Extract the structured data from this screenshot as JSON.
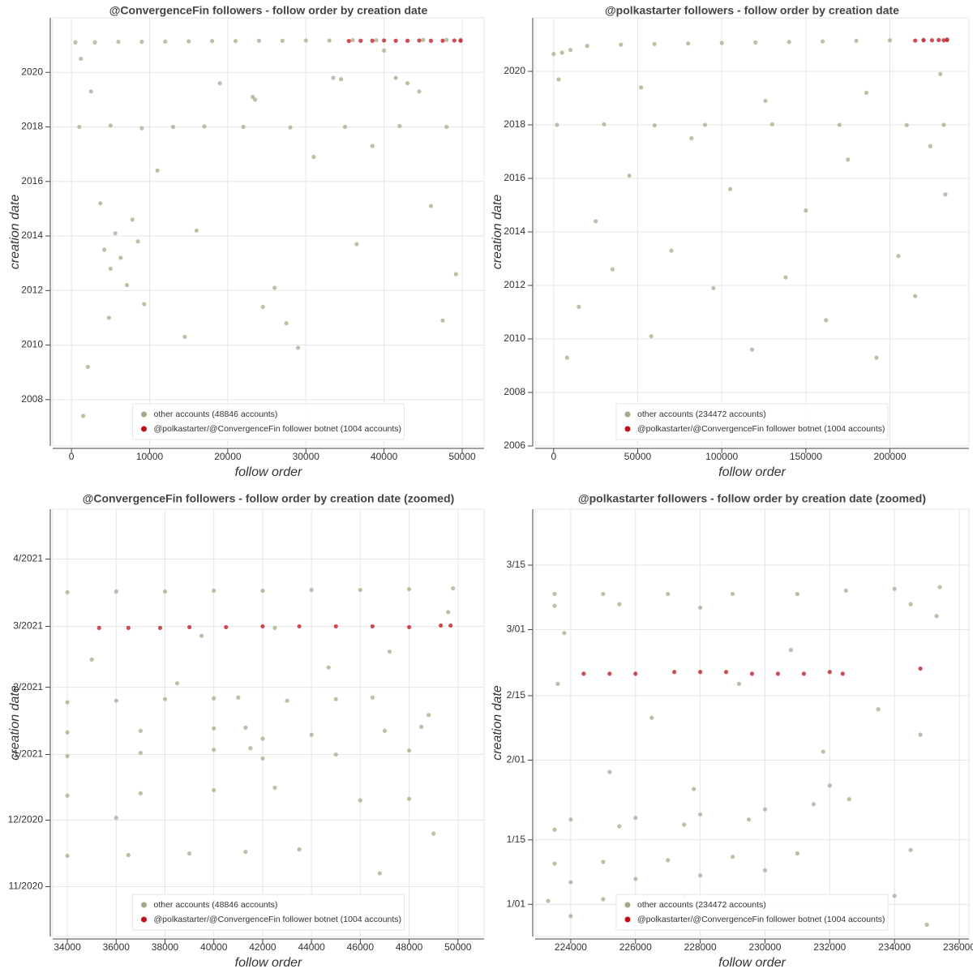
{
  "chart_data": [
    {
      "type": "scatter",
      "title": "@ConvergenceFin followers - follow order by creation date",
      "x_label": "follow order",
      "y_label": "creation date",
      "xlim": [
        -2400,
        52800
      ],
      "ylim": [
        2006.3,
        2022.0
      ],
      "xticks": [
        0,
        10000,
        20000,
        30000,
        40000,
        50000
      ],
      "yticks": [
        2008,
        2010,
        2012,
        2014,
        2016,
        2018,
        2020
      ],
      "grid": true,
      "legend": "bottom",
      "series": [
        {
          "name": "other accounts (48846 accounts)",
          "color": "#a9a888",
          "x": [
            500,
            3000,
            6000,
            9000,
            12000,
            15000,
            18000,
            21000,
            24000,
            27000,
            30000,
            33000,
            36000,
            39000,
            45000,
            48000,
            49800,
            1000,
            5000,
            9000,
            13000,
            17000,
            22000,
            28000,
            35000,
            42000,
            48000,
            1200,
            2500,
            4200,
            5000,
            5600,
            6300,
            7100,
            7800,
            8500,
            9300,
            4800,
            3700,
            2100,
            11000,
            14500,
            19000,
            23200,
            23500,
            24500,
            26000,
            27500,
            31000,
            33500,
            34500,
            36500,
            38500,
            41500,
            43000,
            44500,
            46000,
            47500,
            49200,
            1500,
            16000,
            29000,
            40000
          ],
          "y": [
            2021.1,
            2021.1,
            2021.12,
            2021.12,
            2021.13,
            2021.14,
            2021.15,
            2021.15,
            2021.16,
            2021.16,
            2021.17,
            2021.17,
            2021.18,
            2021.18,
            2021.19,
            2021.19,
            2021.2,
            2018,
            2018.05,
            2017.95,
            2018,
            2018.02,
            2018,
            2017.98,
            2018,
            2018.03,
            2018,
            2020.5,
            2019.3,
            2013.5,
            2012.8,
            2014.1,
            2013.2,
            2012.2,
            2014.6,
            2013.8,
            2011.5,
            2011.0,
            2015.2,
            2009.2,
            2016.4,
            2010.3,
            2019.6,
            2019.1,
            2019.0,
            2011.4,
            2012.1,
            2010.8,
            2016.9,
            2019.8,
            2019.75,
            2013.7,
            2017.3,
            2019.8,
            2019.6,
            2019.3,
            2015.1,
            2010.9,
            2012.6,
            2007.4,
            2014.2,
            2009.9,
            2020.8
          ]
        },
        {
          "name": "@polkastarter/@ConvergenceFin follower botnet (1004 accounts)",
          "color": "#c0101a",
          "x": [
            35500,
            37000,
            38500,
            40000,
            41500,
            43000,
            44500,
            46000,
            47500,
            49000,
            49800
          ],
          "y": [
            2021.15,
            2021.16,
            2021.16,
            2021.17,
            2021.16,
            2021.16,
            2021.17,
            2021.16,
            2021.16,
            2021.17,
            2021.16
          ]
        }
      ]
    },
    {
      "type": "scatter",
      "title": "@polkastarter followers - follow order by creation date",
      "x_label": "follow order",
      "y_label": "creation date",
      "xlim": [
        -11000,
        247000
      ],
      "ylim": [
        2006,
        2022
      ],
      "xticks": [
        0,
        50000,
        100000,
        150000,
        200000
      ],
      "yticks": [
        2006,
        2008,
        2010,
        2012,
        2014,
        2016,
        2018,
        2020
      ],
      "grid": true,
      "legend": "bottom",
      "series": [
        {
          "name": "other accounts (234472 accounts)",
          "color": "#a9a888",
          "x": [
            0,
            5000,
            10000,
            20000,
            40000,
            60000,
            80000,
            100000,
            120000,
            140000,
            160000,
            180000,
            200000,
            220000,
            234000,
            2000,
            30000,
            60000,
            90000,
            130000,
            170000,
            210000,
            232000,
            3000,
            8000,
            15000,
            25000,
            35000,
            45000,
            52000,
            58000,
            70000,
            82000,
            95000,
            105000,
            118000,
            126000,
            138000,
            150000,
            162000,
            175000,
            186000,
            192000,
            205000,
            215000,
            224000,
            230000,
            233000
          ],
          "y": [
            2020.65,
            2020.7,
            2020.8,
            2020.95,
            2021.0,
            2021.02,
            2021.04,
            2021.06,
            2021.08,
            2021.1,
            2021.12,
            2021.14,
            2021.16,
            2021.18,
            2021.2,
            2018,
            2018.02,
            2017.98,
            2018,
            2018.02,
            2018,
            2017.99,
            2018,
            2019.7,
            2009.3,
            2011.2,
            2014.4,
            2012.6,
            2016.1,
            2019.4,
            2010.1,
            2013.3,
            2017.5,
            2011.9,
            2015.6,
            2009.6,
            2018.9,
            2012.3,
            2014.8,
            2010.7,
            2016.7,
            2019.2,
            2009.3,
            2013.1,
            2011.6,
            2017.2,
            2019.9,
            2015.4
          ]
        },
        {
          "name": "@polkastarter/@ConvergenceFin follower botnet (1004 accounts)",
          "color": "#c0101a",
          "x": [
            215000,
            220000,
            225000,
            229000,
            232000,
            234000
          ],
          "y": [
            2021.15,
            2021.16,
            2021.16,
            2021.17,
            2021.16,
            2021.17
          ]
        }
      ]
    },
    {
      "type": "scatter",
      "title": "@ConvergenceFin followers - follow order by creation date (zoomed)",
      "x_label": "follow order",
      "y_label": "creation date",
      "xlim": [
        33400,
        51070
      ],
      "ylim": [
        2020.77,
        2021.31
      ],
      "xticks": [
        34000,
        36000,
        38000,
        40000,
        42000,
        44000,
        46000,
        48000,
        50000
      ],
      "yticks": [
        {
          "value": 2020.833,
          "label": "11/2020"
        },
        {
          "value": 2020.917,
          "label": "12/2020"
        },
        {
          "value": 2021.0,
          "label": "1/2021"
        },
        {
          "value": 2021.085,
          "label": "2/2021"
        },
        {
          "value": 2021.162,
          "label": "3/2021"
        },
        {
          "value": 2021.247,
          "label": "4/2021"
        }
      ],
      "grid": true,
      "legend": "bottom",
      "series": [
        {
          "name": "other accounts (48846 accounts)",
          "color": "#a9a888",
          "x": [
            34000,
            36000,
            38000,
            40000,
            42000,
            44000,
            46000,
            48000,
            49800,
            34000,
            36000,
            38000,
            40000,
            41000,
            43000,
            45000,
            46500,
            34000,
            37000,
            40000,
            41300,
            42000,
            44000,
            47000,
            48500,
            34000,
            37000,
            40000,
            41500,
            42000,
            45000,
            48000,
            34000,
            37000,
            40000,
            42500,
            46000,
            48000,
            34000,
            36500,
            39000,
            41300,
            35000,
            38500,
            42500,
            44700,
            47200,
            48800,
            49600,
            36000,
            43500,
            46800,
            49000,
            45000,
            39500
          ],
          "y": [
            2021.205,
            2021.206,
            2021.206,
            2021.207,
            2021.207,
            2021.208,
            2021.208,
            2021.209,
            2021.21,
            2021.066,
            2021.068,
            2021.07,
            2021.071,
            2021.072,
            2021.068,
            2021.07,
            2021.072,
            2021.028,
            2021.03,
            2021.033,
            2021.034,
            2021.02,
            2021.025,
            2021.03,
            2021.035,
            2020.998,
            2021.002,
            2021.006,
            2021.008,
            2020.995,
            2021.0,
            2021.005,
            2020.948,
            2020.951,
            2020.955,
            2020.958,
            2020.942,
            2020.944,
            2020.872,
            2020.873,
            2020.875,
            2020.877,
            2021.12,
            2021.09,
            2021.16,
            2021.11,
            2021.13,
            2021.05,
            2021.18,
            2020.92,
            2020.88,
            2020.85,
            2020.9,
            2020.79,
            2021.15
          ]
        },
        {
          "name": "@polkastarter/@ConvergenceFin follower botnet (1004 accounts)",
          "color": "#c0101a",
          "x": [
            35300,
            36500,
            37800,
            39000,
            40500,
            42000,
            43500,
            45000,
            46500,
            48000,
            49300,
            49700
          ],
          "y": [
            2021.16,
            2021.16,
            2021.16,
            2021.161,
            2021.161,
            2021.162,
            2021.162,
            2021.162,
            2021.162,
            2021.161,
            2021.163,
            2021.163
          ]
        }
      ]
    },
    {
      "type": "scatter",
      "title": "@polkastarter followers - follow order by creation date (zoomed)",
      "x_label": "follow order",
      "y_label": "creation date",
      "xlim": [
        222900,
        236300
      ],
      "ylim": [
        2020.981,
        2021.233
      ],
      "xticks": [
        224000,
        226000,
        228000,
        230000,
        232000,
        234000,
        236000
      ],
      "yticks": [
        {
          "value": 2021.0,
          "label": "1/01"
        },
        {
          "value": 2021.038,
          "label": "1/15"
        },
        {
          "value": 2021.085,
          "label": "2/01"
        },
        {
          "value": 2021.123,
          "label": "2/15"
        },
        {
          "value": 2021.162,
          "label": "3/01"
        },
        {
          "value": 2021.2,
          "label": "3/15"
        }
      ],
      "grid": true,
      "legend": "bottom",
      "series": [
        {
          "name": "other accounts (234472 accounts)",
          "color": "#a9a888",
          "x": [
            223500,
            225000,
            227000,
            229000,
            231000,
            232500,
            234000,
            235400,
            223500,
            225500,
            228000,
            234500,
            224000,
            226000,
            228000,
            230000,
            231500,
            232600,
            223500,
            225500,
            227500,
            229500,
            223500,
            225000,
            227000,
            229000,
            231000,
            234500,
            224000,
            226000,
            228000,
            230000,
            223300,
            225000,
            227500,
            234000,
            224000,
            226000,
            228000,
            230500,
            223800,
            226500,
            229200,
            231800,
            233500,
            235300,
            225200,
            227800,
            232000,
            234800,
            230800,
            223600,
            235000
          ],
          "y": [
            2021.183,
            2021.183,
            2021.183,
            2021.183,
            2021.183,
            2021.185,
            2021.186,
            2021.187,
            2021.176,
            2021.177,
            2021.175,
            2021.177,
            2021.05,
            2021.051,
            2021.053,
            2021.056,
            2021.059,
            2021.062,
            2021.044,
            2021.046,
            2021.047,
            2021.05,
            2021.024,
            2021.025,
            2021.026,
            2021.028,
            2021.03,
            2021.032,
            2021.013,
            2021.015,
            2021.017,
            2021.02,
            2021.002,
            2021.003,
            2021.005,
            2021.005,
            2020.993,
            2020.994,
            2020.994,
            2020.996,
            2021.16,
            2021.11,
            2021.13,
            2021.09,
            2021.115,
            2021.17,
            2021.078,
            2021.068,
            2021.07,
            2021.1,
            2021.15,
            2021.13,
            2020.988
          ]
        },
        {
          "name": "@polkastarter/@ConvergenceFin follower botnet (1004 accounts)",
          "color": "#c0101a",
          "x": [
            224400,
            225200,
            226000,
            227200,
            228000,
            228800,
            229600,
            230400,
            231200,
            232000,
            232400,
            234800
          ],
          "y": [
            2021.136,
            2021.136,
            2021.136,
            2021.137,
            2021.137,
            2021.137,
            2021.136,
            2021.136,
            2021.136,
            2021.137,
            2021.136,
            2021.139
          ]
        }
      ]
    }
  ]
}
